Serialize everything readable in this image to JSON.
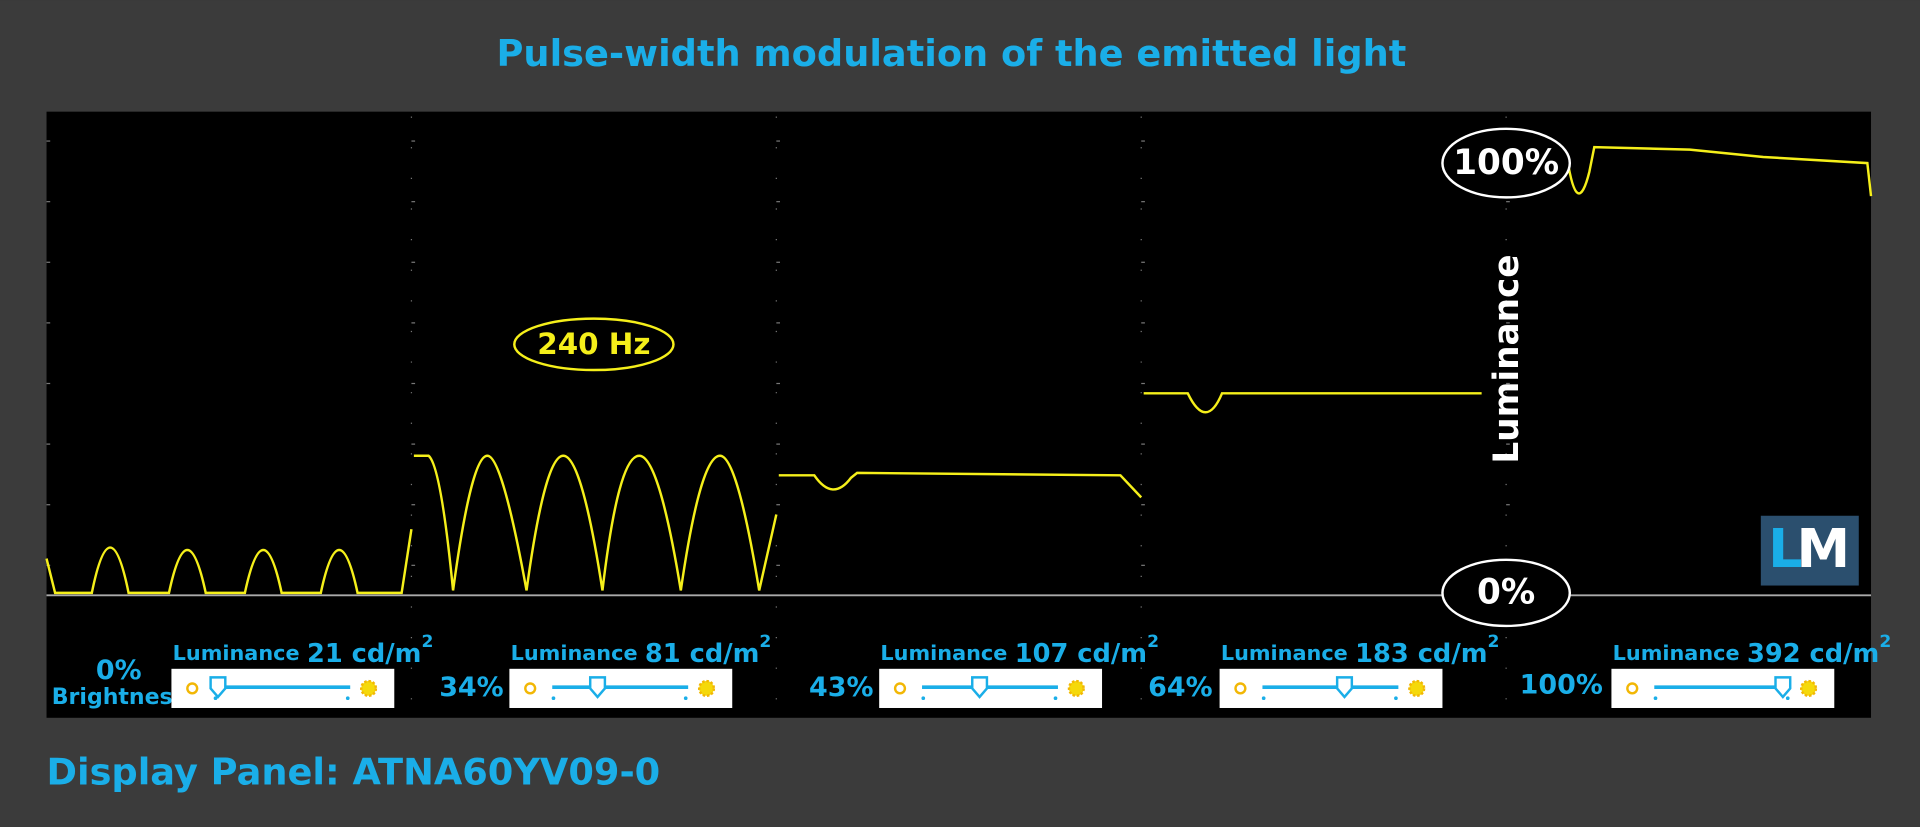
{
  "title": "Pulse-width modulation of the emitted light",
  "annotations": {
    "frequency": "240 Hz",
    "max": "100%",
    "min": "0%",
    "axis_label": "Luminance",
    "logo_l": "L",
    "logo_m": "M"
  },
  "brightness_label": "Brightness",
  "panels": [
    {
      "brightness": "0%",
      "luminance_label": "Luminance",
      "luminance": "21 cd/m",
      "unit_exponent": "2"
    },
    {
      "brightness": "34%",
      "luminance_label": "Luminance",
      "luminance": "81 cd/m",
      "unit_exponent": "2"
    },
    {
      "brightness": "43%",
      "luminance_label": "Luminance",
      "luminance": "107 cd/m",
      "unit_exponent": "2"
    },
    {
      "brightness": "64%",
      "luminance_label": "Luminance",
      "luminance": "183 cd/m",
      "unit_exponent": "2"
    },
    {
      "brightness": "100%",
      "luminance_label": "Luminance",
      "luminance": "392 cd/m",
      "unit_exponent": "2"
    }
  ],
  "footer": "Display Panel: ATNA60YV09-0"
}
